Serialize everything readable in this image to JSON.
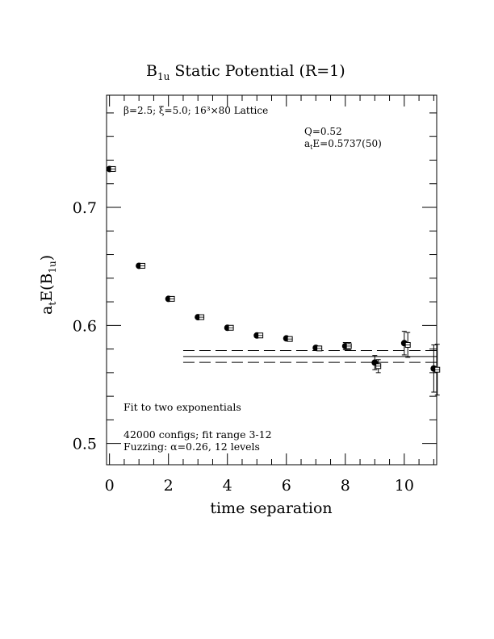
{
  "chart_data": {
    "type": "scatter",
    "title_main": "B",
    "title_sub": "1u",
    "title_rest": " Static Potential (R=1)",
    "xlabel": "time separation",
    "ylabel_main": "a",
    "ylabel_sub1": "t",
    "ylabel_mid": "E(B",
    "ylabel_sub2": "1u",
    "ylabel_end": ")",
    "xlim": [
      -0.1,
      11.1
    ],
    "ylim": [
      0.482,
      0.795
    ],
    "x_ticks": [
      0,
      2,
      4,
      6,
      8,
      10
    ],
    "y_ticks": [
      0.5,
      0.6,
      0.7
    ],
    "x_tick_labels": [
      "0",
      "2",
      "4",
      "6",
      "8",
      "10"
    ],
    "y_tick_labels": [
      "0.5",
      "0.6",
      "0.7"
    ],
    "x_minor_step": 0.5,
    "y_minor_step": 0.02,
    "annotations": {
      "lattice_label": "β=2.5; ξ=5.0; 16³×80 Lattice",
      "q_label": "Q=0.52",
      "energy_prefix": "a",
      "energy_sub": "t",
      "energy_rest": "E=0.5737(50)",
      "fit_label": "Fit to two exponentials",
      "configs_label": "42000 configs; fit range 3-12",
      "fuzzing_label": "Fuzzing: α=0.26, 12 levels"
    },
    "fit_band": {
      "x_start": 2.5,
      "x_end": 11.1,
      "center": 0.5737,
      "upper": 0.5787,
      "lower": 0.5687
    },
    "series": [
      {
        "marker": "filled-circle",
        "x": [
          0,
          1,
          2,
          3,
          4,
          5,
          6,
          7,
          8,
          9,
          10,
          11
        ],
        "y": [
          0.7325,
          0.6505,
          0.6225,
          0.607,
          0.598,
          0.5915,
          0.589,
          0.581,
          0.5825,
          0.5685,
          0.585,
          0.5635
        ],
        "err": [
          0.0005,
          0.0005,
          0.0005,
          0.0005,
          0.0005,
          0.0005,
          0.0005,
          0.001,
          0.003,
          0.006,
          0.01,
          0.02
        ]
      },
      {
        "marker": "open-square",
        "x": [
          0.12,
          1.12,
          2.12,
          3.12,
          4.12,
          5.12,
          6.12,
          7.12,
          8.12,
          9.12,
          10.12,
          11.12
        ],
        "y": [
          0.7325,
          0.6505,
          0.6225,
          0.607,
          0.598,
          0.5915,
          0.5885,
          0.5805,
          0.5825,
          0.5655,
          0.5835,
          0.5625
        ],
        "err": [
          0.0005,
          0.0005,
          0.0005,
          0.0005,
          0.0005,
          0.0005,
          0.0005,
          0.001,
          0.003,
          0.0055,
          0.0105,
          0.0215
        ]
      }
    ]
  }
}
